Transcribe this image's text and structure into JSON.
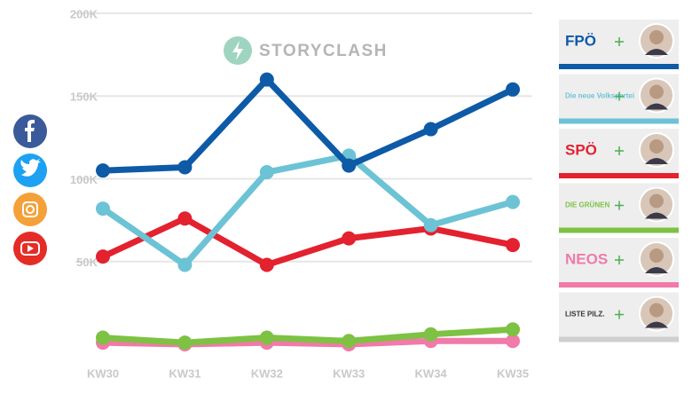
{
  "chart_data": {
    "type": "line",
    "watermark": "STORYCLASH",
    "categories": [
      "KW30",
      "KW31",
      "KW32",
      "KW33",
      "KW34",
      "KW35"
    ],
    "ylim": [
      0,
      200000
    ],
    "yticks": [
      {
        "value": 50000,
        "label": "50K"
      },
      {
        "value": 100000,
        "label": "100K"
      },
      {
        "value": 150000,
        "label": "150K"
      },
      {
        "value": 200000,
        "label": "200K"
      }
    ],
    "grid": true,
    "series": [
      {
        "name": "NEOS",
        "color": "#f07aa8",
        "values": [
          1000,
          0,
          1000,
          0,
          2000,
          2000
        ]
      },
      {
        "name": "DIE GRÜNEN",
        "color": "#7dc242",
        "values": [
          4000,
          1000,
          4000,
          2000,
          6000,
          9000
        ]
      },
      {
        "name": "SPÖ",
        "color": "#e3212f",
        "values": [
          53000,
          76000,
          48000,
          64000,
          70000,
          60000
        ]
      },
      {
        "name": "Die neue Volkspartei",
        "color": "#6cc3d5",
        "values": [
          82000,
          48000,
          104000,
          114000,
          72000,
          86000
        ]
      },
      {
        "name": "FPÖ",
        "color": "#0d5aa7",
        "values": [
          105000,
          107000,
          160000,
          108000,
          130000,
          154000
        ]
      }
    ],
    "extra_legend": {
      "name": "LISTE PILZ.",
      "color": "#cfcfcf"
    }
  }
}
